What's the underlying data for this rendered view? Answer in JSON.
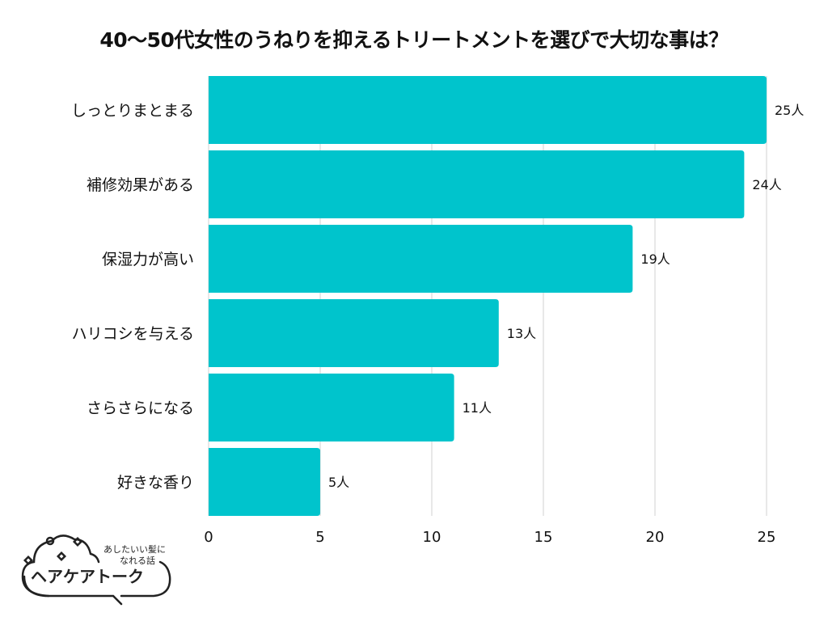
{
  "chart_data": {
    "type": "bar",
    "orientation": "horizontal",
    "title": "40〜50代女性のうねりを抑えるトリートメントを選びで大切な事は？",
    "categories": [
      "しっとりまとまる",
      "補修効果がある",
      "保湿力が高い",
      "ハリコシを与える",
      "さらさらになる",
      "好きな香り"
    ],
    "values": [
      25,
      24,
      19,
      13,
      11,
      5
    ],
    "data_labels": [
      "25人",
      "24人",
      "19人",
      "13人",
      "11人",
      "5人"
    ],
    "xlim": [
      0,
      25
    ],
    "xticks": [
      "0",
      "5",
      "10",
      "15",
      "20",
      "25"
    ],
    "grid": true,
    "bar_color": "#00C4CC"
  },
  "logo": {
    "tagline_line1": "あしたいい髪に",
    "tagline_line2": "なれる話",
    "name": "ヘアケアトーク"
  }
}
